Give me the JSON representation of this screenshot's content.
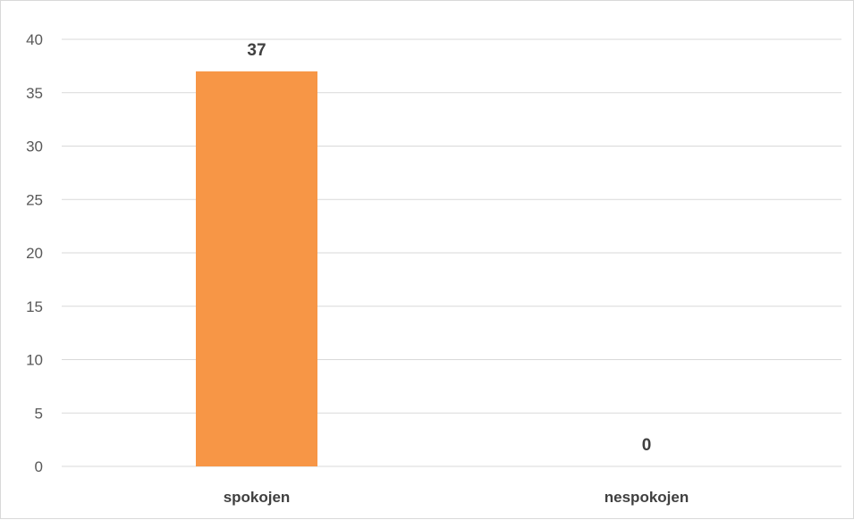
{
  "chart_data": {
    "type": "bar",
    "categories": [
      "spokojen",
      "nespokojen"
    ],
    "values": [
      37,
      0
    ],
    "data_labels": [
      "37",
      "0"
    ],
    "ylim": [
      0,
      40
    ],
    "yticks": [
      0,
      5,
      10,
      15,
      20,
      25,
      30,
      35,
      40
    ],
    "ytick_labels": [
      "0",
      "5",
      "10",
      "15",
      "20",
      "25",
      "30",
      "35",
      "40"
    ],
    "grid": true,
    "legend": "none",
    "colors": {
      "bar": "#f79646",
      "grid": "#d9d9d9"
    }
  }
}
